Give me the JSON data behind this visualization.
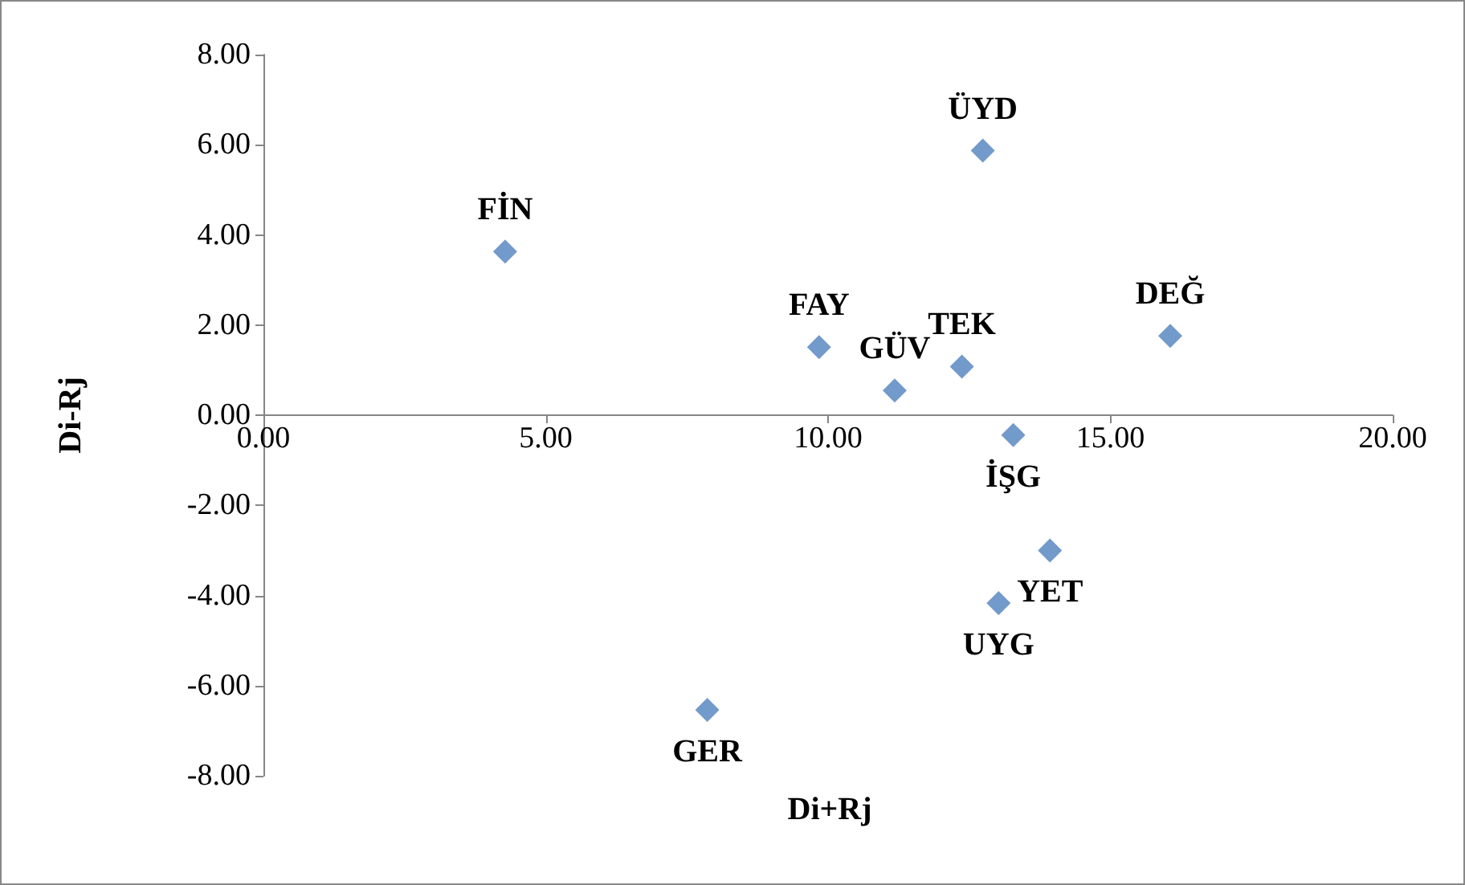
{
  "chart_data": {
    "type": "scatter",
    "xlabel": "Di+Rj",
    "ylabel": "Di-Rj",
    "x": [
      4.28,
      12.74,
      16.06,
      9.84,
      11.18,
      12.37,
      13.28,
      13.93,
      13.02,
      7.86
    ],
    "series": [
      {
        "color": "#4f81bd",
        "values": [
          3.63,
          5.87,
          1.76,
          1.51,
          0.55,
          1.08,
          -0.44,
          -3.0,
          -4.17,
          -6.54
        ]
      }
    ],
    "annotations": [
      {
        "text": "FİN",
        "x": 4.28,
        "y": 3.63
      },
      {
        "text": "ÜYD",
        "x": 12.74,
        "y": 5.87
      },
      {
        "text": "DEĞ",
        "x": 16.06,
        "y": 1.76
      },
      {
        "text": "FAY",
        "x": 9.84,
        "y": 1.51
      },
      {
        "text": "GÜV",
        "x": 11.18,
        "y": 0.55
      },
      {
        "text": "TEK",
        "x": 12.37,
        "y": 1.08
      },
      {
        "text": "İŞG",
        "x": 13.28,
        "y": -0.44
      },
      {
        "text": "YET",
        "x": 13.93,
        "y": -3.0
      },
      {
        "text": "UYG",
        "x": 13.02,
        "y": -4.17
      },
      {
        "text": "GER",
        "x": 7.86,
        "y": -6.54
      }
    ],
    "xlim": [
      0,
      20
    ],
    "xticks": [
      {
        "value": 0,
        "label": "0.00"
      },
      {
        "value": 5,
        "label": "5.00"
      },
      {
        "value": 10,
        "label": "10.00"
      },
      {
        "value": 15,
        "label": "15.00"
      },
      {
        "value": 20,
        "label": "20.00"
      }
    ],
    "ylim": [
      -8,
      8
    ],
    "yticks": [
      {
        "value": -8,
        "label": "-8.00"
      },
      {
        "value": -6,
        "label": "-6.00"
      },
      {
        "value": -4,
        "label": "-4.00"
      },
      {
        "value": -2,
        "label": "-2.00"
      },
      {
        "value": 0,
        "label": "0.00"
      },
      {
        "value": 2,
        "label": "2.00"
      },
      {
        "value": 4,
        "label": "4.00"
      },
      {
        "value": 6,
        "label": "6.00"
      },
      {
        "value": 8,
        "label": "8.00"
      }
    ],
    "grid": false,
    "marker": "diamond"
  }
}
